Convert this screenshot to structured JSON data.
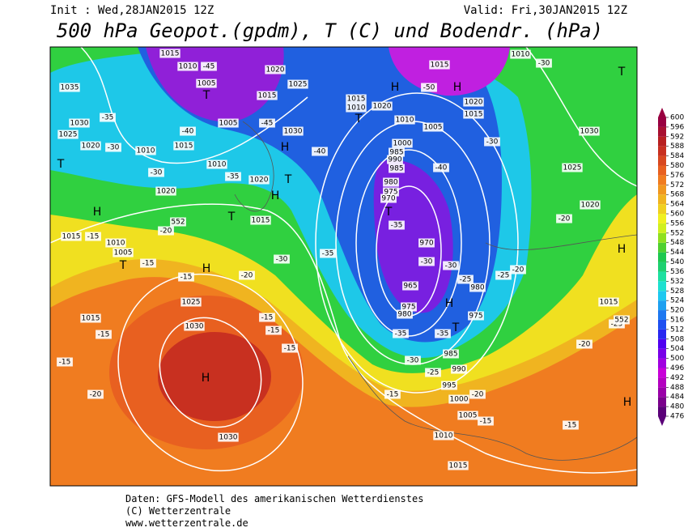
{
  "header": {
    "init": "Init : Wed,28JAN2015 12Z",
    "valid": "Valid: Fri,30JAN2015 12Z",
    "title": "500 hPa Geopot.(gpdm), T (C) und Bodendr. (hPa)"
  },
  "footer": [
    "Daten: GFS-Modell des amerikanischen Wetterdienstes",
    "(C) Wetterzentrale",
    "www.wetterzentrale.de"
  ],
  "colorbar": {
    "ticks": [
      476,
      480,
      484,
      488,
      492,
      496,
      500,
      504,
      508,
      512,
      516,
      520,
      524,
      528,
      532,
      536,
      540,
      544,
      548,
      552,
      556,
      560,
      564,
      568,
      572,
      576,
      580,
      584,
      588,
      592,
      596,
      600
    ],
    "colors": [
      "#5a0078",
      "#7a008c",
      "#9a00a8",
      "#b400c0",
      "#c800d8",
      "#a000e0",
      "#7800e8",
      "#5000f0",
      "#2828f0",
      "#1e50f0",
      "#1e78f0",
      "#1ea0f0",
      "#1ec8f0",
      "#1ee0d0",
      "#1ee0a0",
      "#1ed070",
      "#1ec850",
      "#50d030",
      "#90e020",
      "#d0f020",
      "#f0f020",
      "#f0d020",
      "#f0b420",
      "#f09820",
      "#f07c20",
      "#e86020",
      "#d84820",
      "#c83020",
      "#b82020",
      "#a81030",
      "#980040"
    ]
  },
  "map_labels": [
    "1015",
    "1010",
    "-45",
    "1005",
    "T",
    "1020",
    "1025",
    "1015",
    "1005",
    "-40",
    "-45",
    "1030",
    "H",
    "-40",
    "1035",
    "-35",
    "1030",
    "1025",
    "1020",
    "-30",
    "1010",
    "1015",
    "T",
    "1010",
    "-35",
    "1020",
    "T",
    "H",
    "-30",
    "1020",
    "H",
    "T",
    "1015",
    "552",
    "-20",
    "1015",
    "-15",
    "1010",
    "1005",
    "T",
    "-15",
    "H",
    "-20",
    "-30",
    "-35",
    "-15",
    "1015",
    "-15",
    "1025",
    "1030",
    "H",
    "-20",
    "-15",
    "1030",
    "-15",
    "-15",
    "-15",
    "H",
    "H",
    "1015",
    "-50",
    "1010",
    "-30",
    "T",
    "1015",
    "1010",
    "1020",
    "T",
    "1010",
    "1005",
    "1020",
    "1015",
    "1000",
    "985",
    "990",
    "985",
    "-30",
    "-40",
    "980",
    "975",
    "970",
    "T",
    "-35",
    "970",
    "-30",
    "-30",
    "965",
    "975",
    "980",
    "H",
    "980",
    "975",
    "T",
    "-25",
    "-35",
    "-35",
    "985",
    "-30",
    "990",
    "-25",
    "995",
    "1000",
    "-20",
    "-15",
    "-15",
    "1005",
    "1010",
    "1015",
    "-15",
    "-20",
    "-25",
    "1015",
    "552",
    "H",
    "H",
    "1030",
    "1025",
    "1020",
    "-20",
    "-25",
    "-20"
  ]
}
